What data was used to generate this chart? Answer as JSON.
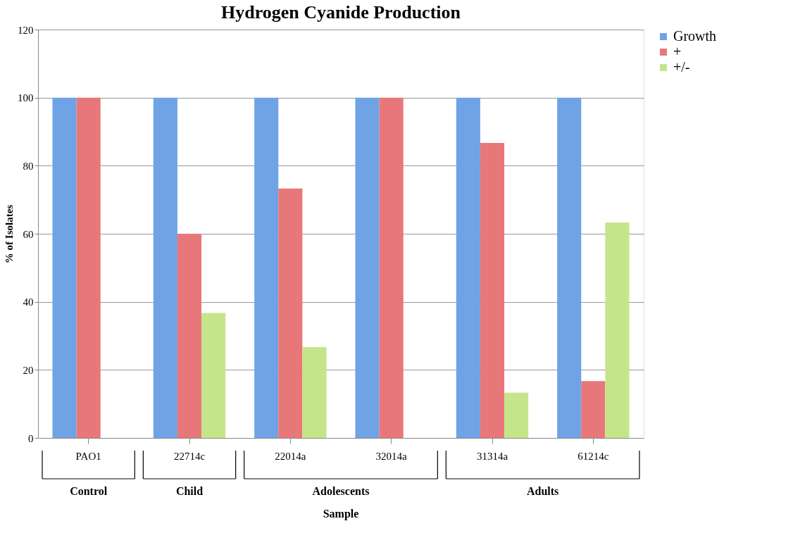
{
  "chart_data": {
    "type": "bar",
    "title": "Hydrogen Cyanide Production",
    "xlabel": "Sample",
    "ylabel": "% of Isolates",
    "categories": [
      "PAO1",
      "22714c",
      "22014a",
      "32014a",
      "31314a",
      "61214c"
    ],
    "series": [
      {
        "name": "Growth",
        "color": "#6fa3e6",
        "values": [
          100,
          100,
          100,
          100,
          100,
          100
        ]
      },
      {
        "name": "+",
        "color": "#e8777a",
        "values": [
          100,
          60,
          73.3,
          100,
          86.7,
          16.7
        ]
      },
      {
        "name": "+/-",
        "color": "#c6e58a",
        "values": [
          0,
          36.7,
          26.7,
          0,
          13.3,
          63.3
        ]
      }
    ],
    "annotations": [
      "Control",
      "Child",
      "Adolescents",
      "Adults"
    ],
    "ylim": [
      0,
      120
    ],
    "yticks": [
      0,
      20,
      40,
      60,
      80,
      100,
      120
    ],
    "grid": "y",
    "legend": "right"
  }
}
